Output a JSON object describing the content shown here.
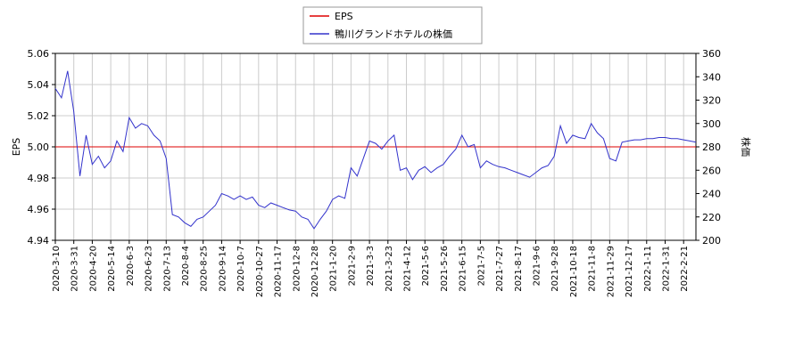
{
  "chart_data": {
    "type": "line",
    "categories": [
      "2020-3-10",
      null,
      null,
      "2020-3-31",
      null,
      null,
      "2020-4-20",
      null,
      null,
      "2020-5-14",
      null,
      null,
      "2020-6-3",
      null,
      null,
      "2020-6-23",
      null,
      null,
      "2020-7-13",
      null,
      null,
      "2020-8-4",
      null,
      null,
      "2020-8-25",
      null,
      null,
      "2020-9-14",
      null,
      null,
      "2020-10-7",
      null,
      null,
      "2020-10-27",
      null,
      null,
      "2020-11-17",
      null,
      null,
      "2020-12-8",
      null,
      null,
      "2020-12-28",
      null,
      null,
      "2021-1-20",
      null,
      null,
      "2021-2-9",
      null,
      null,
      "2021-3-3",
      null,
      null,
      "2021-3-23",
      null,
      null,
      "2021-4-12",
      null,
      null,
      "2021-5-6",
      null,
      null,
      "2021-5-26",
      null,
      null,
      "2021-6-15",
      null,
      null,
      "2021-7-5",
      null,
      null,
      "2021-7-27",
      null,
      null,
      "2021-8-17",
      null,
      null,
      "2021-9-6",
      null,
      null,
      "2021-9-28",
      null,
      null,
      "2021-10-18",
      null,
      null,
      "2021-11-8",
      null,
      null,
      "2021-11-29",
      null,
      null,
      "2021-12-17",
      null,
      null,
      "2022-1-11",
      null,
      null,
      "2022-1-31",
      null,
      null,
      "2022-2-21",
      null,
      null
    ],
    "series": [
      {
        "name": "EPS",
        "color": "#dd0000",
        "axis": "y",
        "values": [
          5,
          5,
          5,
          5,
          5,
          5,
          5,
          5,
          5,
          5,
          5,
          5,
          5,
          5,
          5,
          5,
          5,
          5,
          5,
          5,
          5,
          5,
          5,
          5,
          5,
          5,
          5,
          5,
          5,
          5,
          5,
          5,
          5,
          5,
          5,
          5,
          5,
          5,
          5,
          5,
          5,
          5,
          5,
          5,
          5,
          5,
          5,
          5,
          5,
          5,
          5,
          5,
          5,
          5,
          5,
          5,
          5,
          5,
          5,
          5,
          5,
          5,
          5,
          5,
          5,
          5,
          5,
          5,
          5,
          5,
          5,
          5,
          5,
          5,
          5,
          5,
          5,
          5,
          5,
          5,
          5,
          5,
          5,
          5,
          5,
          5,
          5,
          5,
          5,
          5,
          5,
          5,
          5,
          5,
          5,
          5,
          5,
          5,
          5,
          5,
          5,
          5,
          5,
          5,
          5
        ]
      },
      {
        "name": "鴨川グランドホテルの株価",
        "color": "#3333cc",
        "axis": "y2",
        "values": [
          330,
          322,
          345,
          310,
          255,
          290,
          265,
          272,
          262,
          268,
          285,
          276,
          305,
          296,
          300,
          298,
          290,
          285,
          270,
          222,
          220,
          215,
          212,
          218,
          220,
          225,
          230,
          240,
          238,
          235,
          238,
          235,
          237,
          230,
          228,
          232,
          230,
          228,
          226,
          225,
          220,
          218,
          210,
          218,
          225,
          235,
          238,
          236,
          262,
          255,
          270,
          285,
          283,
          278,
          285,
          290,
          260,
          262,
          252,
          260,
          263,
          258,
          262,
          265,
          272,
          278,
          290,
          280,
          282,
          262,
          268,
          265,
          263,
          262,
          260,
          258,
          256,
          254,
          258,
          262,
          264,
          272,
          298,
          283,
          290,
          288,
          287,
          300,
          292,
          287,
          270,
          268,
          284,
          285,
          286,
          286,
          287,
          287,
          288,
          288,
          287,
          287,
          286,
          285,
          284
        ]
      }
    ],
    "ylabel": "EPS",
    "y2label": "株価",
    "ylim": [
      4.94,
      5.06
    ],
    "yticks": [
      4.94,
      4.96,
      4.98,
      {
        "value": 5,
        "label": "5.00"
      },
      5.02,
      5.04,
      5.06
    ],
    "y2lim": [
      200,
      360
    ],
    "y2ticks": [
      200,
      220,
      240,
      260,
      280,
      300,
      320,
      340,
      360
    ],
    "grid": true,
    "legend": "top"
  }
}
